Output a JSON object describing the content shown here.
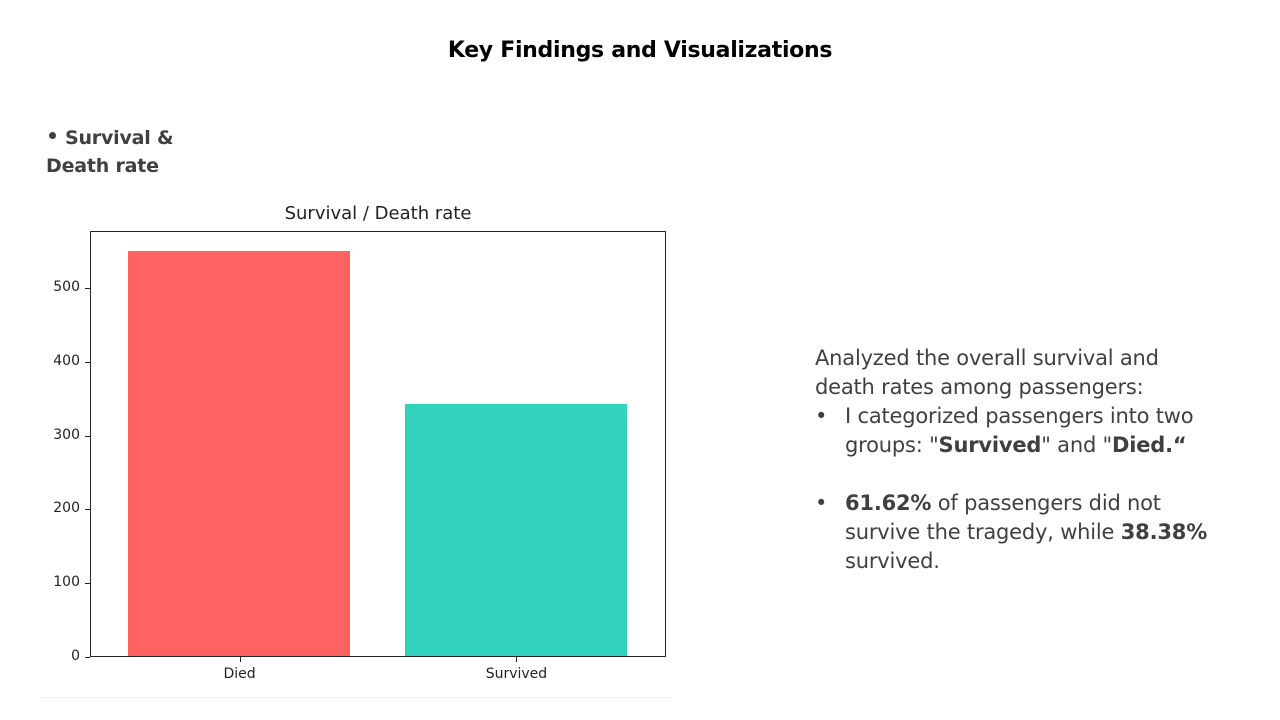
{
  "slide": {
    "title": "Key Findings and Visualizations",
    "section_heading_line1": "Survival &",
    "section_heading_line2": "Death rate"
  },
  "chart_data": {
    "type": "bar",
    "title": "Survival / Death rate",
    "categories": [
      "Died",
      "Survived"
    ],
    "values": [
      549,
      342
    ],
    "colors": [
      "#ff6361",
      "#31d3bd"
    ],
    "xlabel": "",
    "ylabel": "",
    "ylim": [
      0,
      577
    ],
    "yticks": [
      0,
      100,
      200,
      300,
      400,
      500
    ],
    "grid": false,
    "legend": null
  },
  "text": {
    "intro_line1": "Analyzed the overall survival and",
    "intro_line2": "death rates among passengers:",
    "bullet1": {
      "pre": "I categorized passengers into two groups: \"",
      "bold1": "Survived",
      "mid": "\" and \"",
      "bold2": "Died.“",
      "post": ""
    },
    "bullet2": {
      "bold1": "61.62%",
      "mid": " of passengers did not survive the tragedy, while ",
      "bold2": "38.38%",
      "post": " survived."
    }
  }
}
